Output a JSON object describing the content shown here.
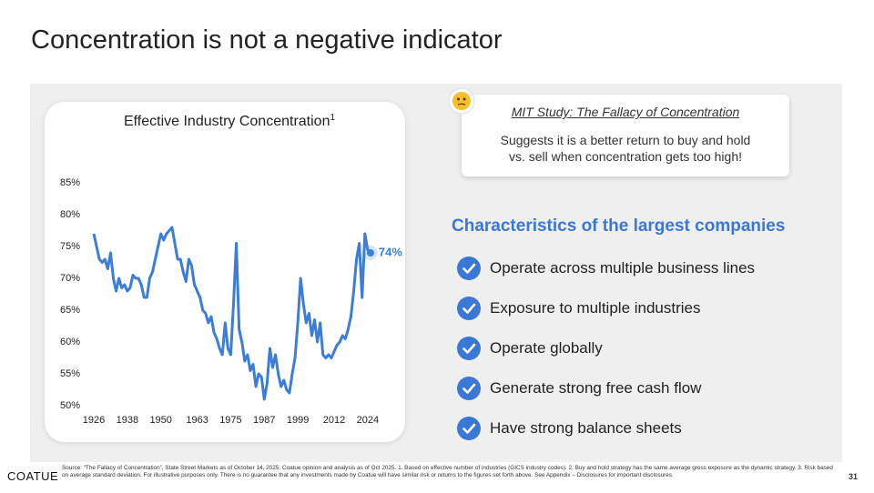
{
  "title": "Concentration is not a negative indicator",
  "chart_data": {
    "type": "line",
    "title": "Effective Industry Concentration",
    "title_note": "1",
    "x": [
      1926,
      1927,
      1928,
      1929,
      1930,
      1931,
      1932,
      1933,
      1934,
      1935,
      1936,
      1937,
      1938,
      1939,
      1940,
      1941,
      1942,
      1943,
      1944,
      1945,
      1946,
      1947,
      1948,
      1949,
      1950,
      1951,
      1952,
      1953,
      1954,
      1955,
      1956,
      1957,
      1958,
      1959,
      1960,
      1961,
      1962,
      1963,
      1964,
      1965,
      1966,
      1967,
      1968,
      1969,
      1970,
      1971,
      1972,
      1973,
      1974,
      1975,
      1976,
      1977,
      1978,
      1979,
      1980,
      1981,
      1982,
      1983,
      1984,
      1985,
      1986,
      1987,
      1988,
      1989,
      1990,
      1991,
      1992,
      1993,
      1994,
      1995,
      1996,
      1997,
      1998,
      1999,
      2000,
      2001,
      2002,
      2003,
      2004,
      2005,
      2006,
      2007,
      2008,
      2009,
      2010,
      2011,
      2012,
      2013,
      2014,
      2015,
      2016,
      2017,
      2018,
      2019,
      2020,
      2021,
      2022,
      2023,
      2024,
      2025
    ],
    "series": [
      {
        "color": "#3b7dd8",
        "values": [
          77,
          75,
          73,
          72.5,
          73,
          71.5,
          74,
          70,
          68,
          70,
          68.5,
          69,
          68,
          68.5,
          70.5,
          70,
          70,
          69,
          67,
          67,
          70,
          71,
          73,
          75,
          77,
          76,
          77,
          77.5,
          78,
          75.5,
          73,
          73,
          71,
          69.5,
          73,
          72,
          69,
          68,
          67,
          65,
          64.5,
          63,
          64,
          61.5,
          60.5,
          59,
          58,
          63,
          59,
          58,
          66,
          75.5,
          62,
          60,
          57,
          58,
          55.5,
          56.5,
          53,
          55,
          54.5,
          51,
          53.5,
          59,
          56,
          58,
          55,
          53,
          54,
          52.5,
          52,
          55,
          57.5,
          63,
          70,
          66,
          63,
          64.5,
          61,
          63.5,
          60,
          63,
          58,
          57.5,
          58,
          57.5,
          58.5,
          59.5,
          60,
          61,
          60.5,
          62,
          64,
          68,
          73,
          75.5,
          67,
          77,
          74.5,
          74
        ]
      }
    ],
    "annotations": [
      {
        "x": 2025,
        "y": 74,
        "label": "74%"
      }
    ],
    "xlim": [
      1926,
      2026
    ],
    "xticks": [
      1926,
      1938,
      1950,
      1963,
      1975,
      1987,
      1999,
      2012,
      2024
    ],
    "ylim": [
      50,
      85
    ],
    "yticks": [
      {
        "value": 50,
        "label": "50%"
      },
      {
        "value": 55,
        "label": "55%"
      },
      {
        "value": 60,
        "label": "60%"
      },
      {
        "value": 65,
        "label": "65%"
      },
      {
        "value": 70,
        "label": "70%"
      },
      {
        "value": 75,
        "label": "75%"
      },
      {
        "value": 80,
        "label": "80%"
      },
      {
        "value": 85,
        "label": "85%"
      }
    ],
    "grid": false
  },
  "callout": {
    "title": "MIT Study: The Fallacy of Concentration",
    "text": "Suggests it is a better return to buy and hold vs. sell when concentration gets too high!"
  },
  "characteristics": {
    "heading": "Characteristics of the largest companies",
    "items": [
      "Operate across multiple business lines",
      "Exposure to multiple industries",
      "Operate globally",
      "Generate strong free cash flow",
      "Have strong balance sheets"
    ]
  },
  "footer": {
    "logo": "COATUE",
    "source": "Source: “The Fallacy of Concentration”, State Street Markets as of October 14, 2025. Coatue opinion and analysis as of Oct 2025. 1. Based on effective number of industries (GICS industry codes). 2. Buy and hold strategy has the same average gross exposure as the dynamic strategy. 3. Risk based on average standard deviation. For illustrative purposes only. There is no guarantee that any investments made by Coatue will have similar risk or returns to the figures set forth above. See Appendix – Disclosures for important disclosures.",
    "page": "31"
  }
}
